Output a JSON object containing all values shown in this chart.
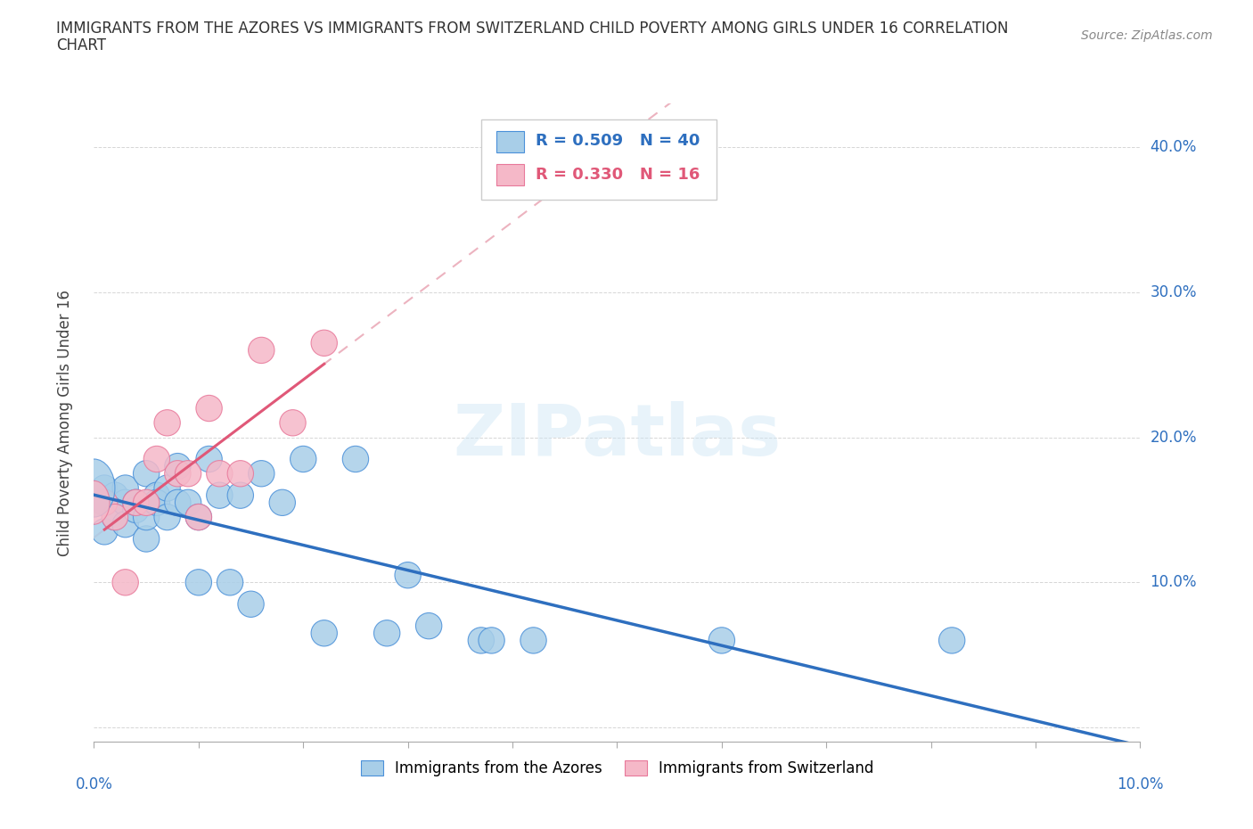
{
  "title_line1": "IMMIGRANTS FROM THE AZORES VS IMMIGRANTS FROM SWITZERLAND CHILD POVERTY AMONG GIRLS UNDER 16 CORRELATION",
  "title_line2": "CHART",
  "source_text": "Source: ZipAtlas.com",
  "ylabel": "Child Poverty Among Girls Under 16",
  "xlim": [
    0.0,
    0.1
  ],
  "ylim": [
    -0.01,
    0.43
  ],
  "y_tick_vals": [
    0.0,
    0.1,
    0.2,
    0.3,
    0.4
  ],
  "y_tick_labels": [
    "",
    "10.0%",
    "20.0%",
    "30.0%",
    "40.0%"
  ],
  "x_tick_vals": [
    0.0,
    0.01,
    0.02,
    0.03,
    0.04,
    0.05,
    0.06,
    0.07,
    0.08,
    0.09,
    0.1
  ],
  "color_azores": "#A8CEE8",
  "color_switzerland": "#F5B8C8",
  "edge_color_azores": "#4A90D9",
  "edge_color_switzerland": "#E8789A",
  "line_color_azores": "#2E6FBF",
  "line_color_switzerland": "#E05878",
  "dashed_color": "#E8A0B0",
  "watermark": "ZIPatlas",
  "legend_r1": "R = 0.509",
  "legend_n1": "N = 40",
  "legend_r2": "R = 0.330",
  "legend_n2": "N = 16",
  "azores_x": [
    0.001,
    0.001,
    0.001,
    0.002,
    0.002,
    0.003,
    0.003,
    0.003,
    0.004,
    0.004,
    0.005,
    0.005,
    0.005,
    0.006,
    0.006,
    0.007,
    0.007,
    0.008,
    0.008,
    0.009,
    0.01,
    0.01,
    0.011,
    0.012,
    0.013,
    0.014,
    0.015,
    0.016,
    0.018,
    0.02,
    0.022,
    0.025,
    0.028,
    0.03,
    0.032,
    0.037,
    0.038,
    0.042,
    0.06,
    0.082
  ],
  "azores_y": [
    0.155,
    0.165,
    0.135,
    0.16,
    0.145,
    0.155,
    0.165,
    0.14,
    0.15,
    0.155,
    0.13,
    0.145,
    0.175,
    0.16,
    0.155,
    0.165,
    0.145,
    0.155,
    0.18,
    0.155,
    0.1,
    0.145,
    0.185,
    0.16,
    0.1,
    0.16,
    0.085,
    0.175,
    0.155,
    0.185,
    0.065,
    0.185,
    0.065,
    0.105,
    0.07,
    0.06,
    0.06,
    0.06,
    0.06,
    0.06
  ],
  "switzerland_x": [
    0.001,
    0.002,
    0.003,
    0.004,
    0.005,
    0.006,
    0.007,
    0.008,
    0.009,
    0.01,
    0.011,
    0.012,
    0.014,
    0.016,
    0.019,
    0.022
  ],
  "switzerland_y": [
    0.155,
    0.145,
    0.1,
    0.155,
    0.155,
    0.185,
    0.21,
    0.175,
    0.175,
    0.145,
    0.22,
    0.175,
    0.175,
    0.26,
    0.21,
    0.265
  ],
  "title_fontsize": 12,
  "tick_fontsize": 12,
  "label_fontsize": 12,
  "source_fontsize": 10,
  "legend_fontsize": 13
}
